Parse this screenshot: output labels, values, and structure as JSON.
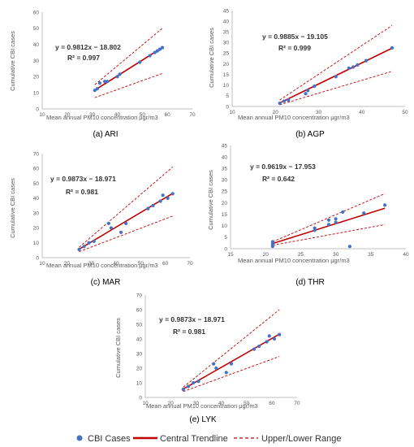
{
  "colors": {
    "points": "#4472C4",
    "trend": "#C00000",
    "range": "#C00000",
    "axis": "#BFBFBF",
    "text": "#595959",
    "caption": "#000000"
  },
  "legend": {
    "items": [
      "CBI Cases",
      "Central Trendline",
      "Upper/Lower Range"
    ]
  },
  "chart_data": [
    {
      "id": "ARI",
      "type": "scatter",
      "caption": "(a) ARI",
      "xlabel": "Mean annual PM10 concentration μgr/m3",
      "ylabel": "Cumulative CBI cases",
      "xlim": [
        10,
        70
      ],
      "ylim": [
        0,
        60
      ],
      "xticks": [
        10,
        20,
        30,
        40,
        50,
        60,
        70
      ],
      "yticks": [
        0,
        10,
        20,
        30,
        40,
        50,
        60
      ],
      "equation": "y = 0.9812x − 18.802",
      "r2": "R² = 0.997",
      "slope": 0.9812,
      "intercept": -18.802,
      "fit_range": [
        31,
        58
      ],
      "upper_line": [
        [
          31,
          15
        ],
        [
          58,
          50
        ]
      ],
      "lower_line": [
        [
          31,
          7
        ],
        [
          58,
          22
        ]
      ],
      "points": [
        [
          31,
          11.5
        ],
        [
          32,
          12.5
        ],
        [
          33,
          16
        ],
        [
          35,
          17
        ],
        [
          36,
          17
        ],
        [
          40,
          20
        ],
        [
          41,
          21.5
        ],
        [
          49,
          29
        ],
        [
          53,
          33
        ],
        [
          55,
          35
        ],
        [
          56,
          36
        ],
        [
          57,
          37
        ],
        [
          58,
          38
        ]
      ]
    },
    {
      "id": "AGP",
      "type": "scatter",
      "caption": "(b) AGP",
      "xlabel": "Mean annual PM10 concentration μgr/m3",
      "ylabel": "Cumulative CBI cases",
      "xlim": [
        10,
        50
      ],
      "ylim": [
        0,
        45
      ],
      "xticks": [
        10,
        20,
        30,
        40,
        50
      ],
      "yticks": [
        0,
        5,
        10,
        15,
        20,
        25,
        30,
        35,
        40,
        45
      ],
      "equation": "y = 0.9885x − 19.105",
      "r2": "R² = 0.999",
      "slope": 0.9885,
      "intercept": -19.105,
      "fit_range": [
        21,
        47
      ],
      "upper_line": [
        [
          21,
          3
        ],
        [
          47,
          38
        ]
      ],
      "lower_line": [
        [
          21,
          0.8
        ],
        [
          47,
          16.5
        ]
      ],
      "points": [
        [
          21,
          1.5
        ],
        [
          22,
          2.5
        ],
        [
          23,
          3
        ],
        [
          27,
          6
        ],
        [
          27.5,
          7.5
        ],
        [
          29,
          9.5
        ],
        [
          34,
          14
        ],
        [
          37,
          18
        ],
        [
          38,
          18.5
        ],
        [
          39,
          19.5
        ],
        [
          41,
          21.5
        ],
        [
          47,
          27.5
        ]
      ]
    },
    {
      "id": "MAR",
      "type": "scatter",
      "caption": "(c) MAR",
      "xlabel": "Mean annual PM10 concentration μgr/m3",
      "ylabel": "Cumulative CBI cases",
      "xlim": [
        10,
        70
      ],
      "ylim": [
        0,
        70
      ],
      "xticks": [
        10,
        20,
        30,
        40,
        50,
        60,
        70
      ],
      "yticks": [
        0,
        10,
        20,
        30,
        40,
        50,
        60,
        70
      ],
      "equation": "y = 0.9873x − 18.971",
      "r2": "R² = 0.981",
      "slope": 0.9873,
      "intercept": -18.971,
      "fit_range": [
        25,
        63
      ],
      "upper_line": [
        [
          25,
          7
        ],
        [
          63,
          61
        ]
      ],
      "lower_line": [
        [
          25,
          4
        ],
        [
          63,
          28
        ]
      ],
      "points": [
        [
          25,
          5.5
        ],
        [
          27,
          7.5
        ],
        [
          29,
          10
        ],
        [
          31,
          11
        ],
        [
          37,
          23
        ],
        [
          38,
          20
        ],
        [
          42,
          17
        ],
        [
          44,
          23
        ],
        [
          53,
          33
        ],
        [
          55,
          35
        ],
        [
          58,
          38
        ],
        [
          59,
          42
        ],
        [
          61,
          40
        ],
        [
          63,
          43
        ]
      ]
    },
    {
      "id": "THR",
      "type": "scatter",
      "caption": "(d) THR",
      "xlabel": "Mean annual PM10 concentration μgr/m3",
      "ylabel": "Cumulative CBI cases",
      "xlim": [
        15,
        40
      ],
      "ylim": [
        0,
        45
      ],
      "xticks": [
        15,
        20,
        25,
        30,
        35,
        40
      ],
      "yticks": [
        0,
        5,
        10,
        15,
        20,
        25,
        30,
        35,
        40,
        45
      ],
      "equation": "y = 0.9619x − 17.953",
      "r2": "R² = 0.642",
      "slope": 0.9619,
      "intercept": -17.953,
      "fit_range": [
        21,
        37
      ],
      "upper_line": [
        [
          21,
          3
        ],
        [
          37,
          24
        ]
      ],
      "lower_line": [
        [
          21,
          1.5
        ],
        [
          37,
          10.5
        ]
      ],
      "points": [
        [
          21,
          1
        ],
        [
          21,
          2
        ],
        [
          21,
          3
        ],
        [
          27,
          8
        ],
        [
          27,
          9
        ],
        [
          29,
          10.5
        ],
        [
          29,
          12.5
        ],
        [
          30,
          11.5
        ],
        [
          30,
          13
        ],
        [
          31,
          16
        ],
        [
          32,
          1
        ],
        [
          34,
          15.5
        ],
        [
          37,
          19
        ]
      ]
    },
    {
      "id": "LYK",
      "type": "scatter",
      "caption": "(e) LYK",
      "xlabel": "Mean annual PM10 concentration μgr/m3",
      "ylabel": "Cumulative CBI cases",
      "xlim": [
        10,
        70
      ],
      "ylim": [
        0,
        70
      ],
      "xticks": [
        10,
        20,
        30,
        40,
        50,
        60,
        70
      ],
      "yticks": [
        0,
        10,
        20,
        30,
        40,
        50,
        60,
        70
      ],
      "equation": "y = 0.9873x − 18.971",
      "r2": "R² = 0.981",
      "slope": 0.9873,
      "intercept": -18.971,
      "fit_range": [
        25,
        63
      ],
      "upper_line": [
        [
          25,
          7
        ],
        [
          63,
          60
        ]
      ],
      "lower_line": [
        [
          25,
          4
        ],
        [
          63,
          28
        ]
      ],
      "points": [
        [
          25,
          5.5
        ],
        [
          27,
          7.5
        ],
        [
          29,
          10
        ],
        [
          31,
          11
        ],
        [
          37,
          23
        ],
        [
          38,
          20
        ],
        [
          42,
          17
        ],
        [
          44,
          23
        ],
        [
          53,
          33
        ],
        [
          55,
          35
        ],
        [
          58,
          38
        ],
        [
          59,
          42
        ],
        [
          61,
          40
        ],
        [
          63,
          43
        ]
      ]
    }
  ]
}
